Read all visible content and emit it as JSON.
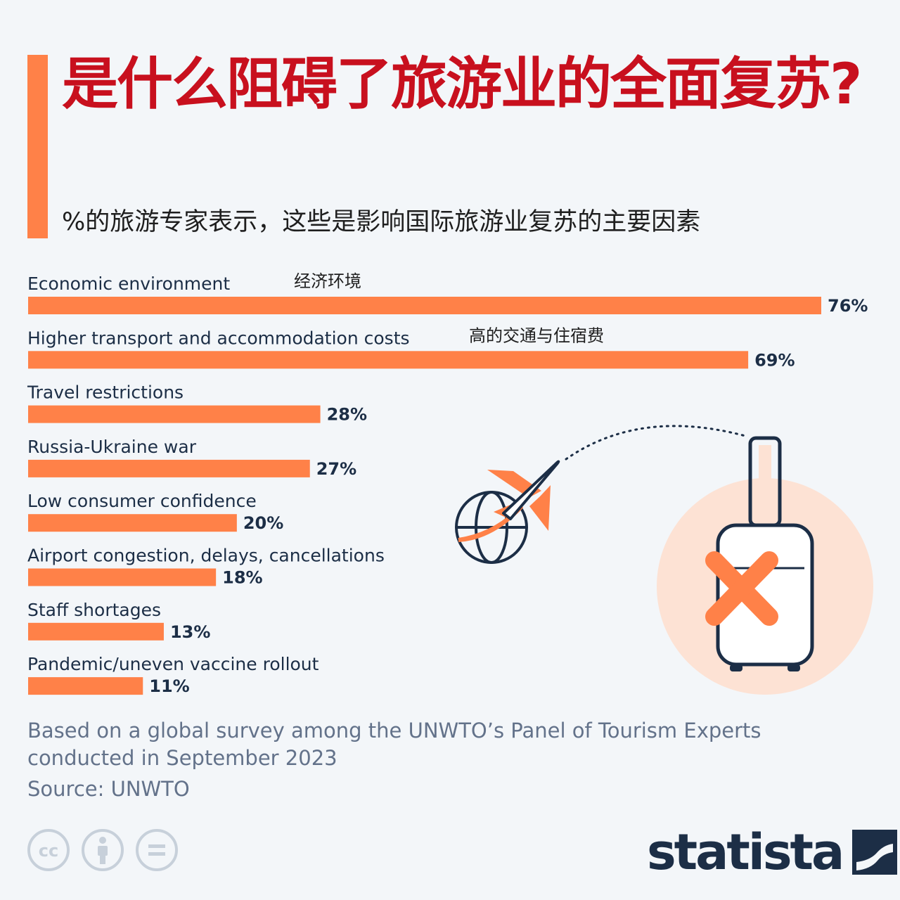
{
  "title": "是什么阻碍了旅游业的全面复苏?",
  "subtitle": "%的旅游专家表示，这些是影响国际旅游业复苏的主要因素",
  "chart_data": {
    "type": "bar",
    "orientation": "horizontal",
    "categories": [
      "Economic environment",
      "Higher transport and accommodation costs",
      "Travel restrictions",
      "Russia-Ukraine war",
      "Low consumer confidence",
      "Airport congestion, delays, cancellations",
      "Staff shortages",
      "Pandemic/uneven vaccine rollout"
    ],
    "translations": [
      "经济环境",
      "高的交通与住宿费",
      "",
      "",
      "",
      "",
      "",
      ""
    ],
    "values": [
      76,
      69,
      28,
      27,
      20,
      18,
      13,
      11
    ],
    "value_labels": [
      "76%",
      "69%",
      "28%",
      "27%",
      "20%",
      "18%",
      "13%",
      "11%"
    ],
    "unit": "%",
    "bar_color": "#ff8148",
    "grid": false,
    "legend": "none"
  },
  "note": "Based on a global survey among the UNWTO’s Panel of Tourism Experts\nconducted in September 2023",
  "source": "Source: UNWTO",
  "logo": "statista",
  "license_icons": [
    "cc-icon",
    "attribution-icon",
    "no-derivatives-icon"
  ],
  "colors": {
    "accent": "#ff8148",
    "title": "#c8101e",
    "navy": "#1c2e46",
    "muted": "#63728a",
    "background": "#f3f6f9",
    "peach": "#fde2d4"
  }
}
